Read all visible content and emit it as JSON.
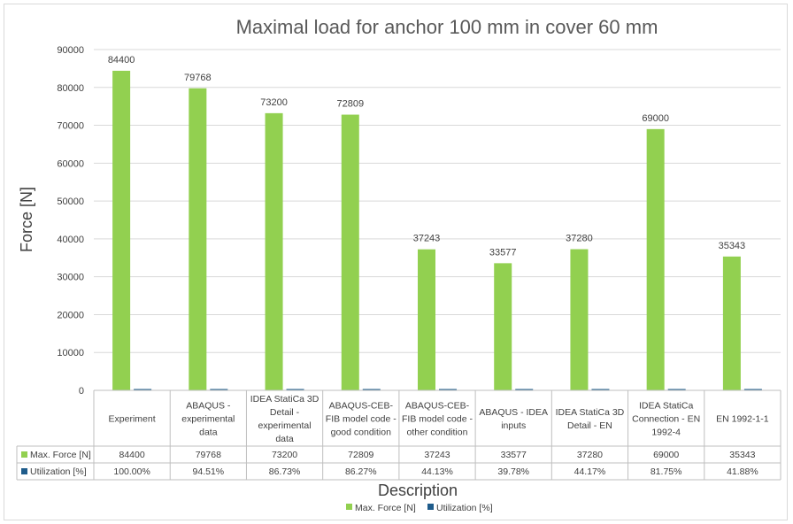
{
  "chart_data": {
    "type": "bar",
    "title": "Maximal load for anchor  100 mm in cover 60 mm",
    "xlabel": "Description",
    "ylabel": "Force [N]",
    "ylim": [
      0,
      90000
    ],
    "ytick_step": 10000,
    "y_ticks": [
      "0",
      "10000",
      "20000",
      "30000",
      "40000",
      "50000",
      "60000",
      "70000",
      "80000",
      "90000"
    ],
    "grid": true,
    "legend_position": "bottom",
    "categories": [
      [
        "Experiment"
      ],
      [
        "ABAQUS -",
        "experimental",
        "data"
      ],
      [
        "IDEA StatiCa 3D",
        "Detail -",
        "experimental",
        "data"
      ],
      [
        "ABAQUS-CEB-",
        "FIB model code -",
        "good condition"
      ],
      [
        "ABAQUS-CEB-",
        "FIB model code -",
        "other condition"
      ],
      [
        "ABAQUS - IDEA",
        "inputs"
      ],
      [
        "IDEA StatiCa 3D",
        "Detail - EN"
      ],
      [
        "IDEA StatiCa",
        "Connection - EN",
        "1992-4"
      ],
      [
        "EN 1992-1-1"
      ]
    ],
    "series": [
      {
        "name": "Max. Force [N]",
        "color": "#92d050",
        "values": [
          84400,
          79768,
          73200,
          72809,
          37243,
          33577,
          37280,
          69000,
          35343
        ],
        "table_values": [
          "84400",
          "79768",
          "73200",
          "72809",
          "37243",
          "33577",
          "37280",
          "69000",
          "35343"
        ]
      },
      {
        "name": "Utilization [%]",
        "color": "#1f5c8b",
        "values": [
          1.0,
          0.9451,
          0.8673,
          0.8627,
          0.4413,
          0.3978,
          0.4417,
          0.8175,
          0.4188
        ],
        "table_values": [
          "100.00%",
          "94.51%",
          "86.73%",
          "86.27%",
          "44.13%",
          "39.78%",
          "44.17%",
          "81.75%",
          "41.88%"
        ]
      }
    ]
  }
}
